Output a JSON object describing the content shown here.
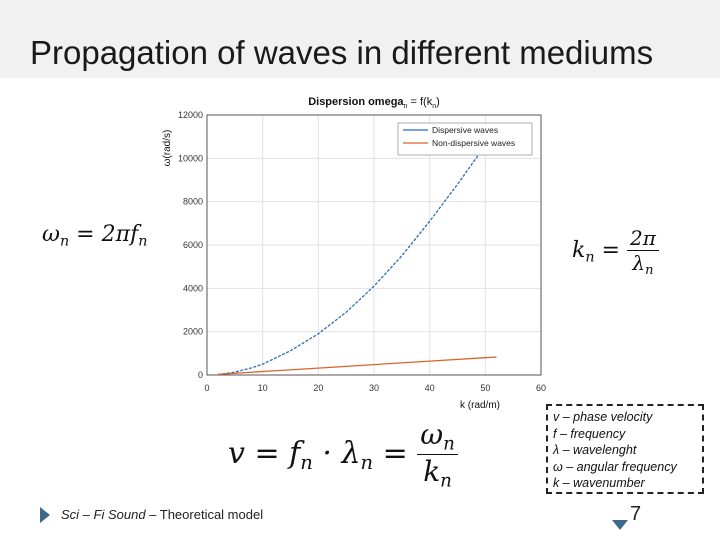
{
  "slide": {
    "title": "Propagation of waves in different mediums",
    "footer_part1": "Sci – Fi Sound",
    "footer_part2": " – Theoretical model",
    "page_number": "7"
  },
  "formulas": {
    "omega_n": "ω",
    "omega_eq": " = 2π",
    "f": "f",
    "n": "n",
    "k": "k",
    "eq": " = ",
    "two_pi": "2π",
    "lambda": "λ",
    "v": "v",
    "dot": " · "
  },
  "legend_box": {
    "lines": [
      "v – phase velocity",
      "f – frequency",
      "λ – wavelenght",
      "ω – angular frequency",
      "k – wavenumber"
    ]
  },
  "colors": {
    "dispersive": "#2f6db5",
    "non_dispersive": "#d9632b",
    "footer_arrow": "#3d6a8a"
  },
  "chart_data": {
    "type": "line",
    "title": "Dispersion omega",
    "title_sub": "n",
    "title_eq": " = f(k",
    "title_sub2": "n",
    "title_end": ")",
    "xlabel": "k (rad/m)",
    "ylabel": "ω(rad/s)",
    "xlim": [
      0,
      60
    ],
    "ylim": [
      0,
      12000
    ],
    "xticks": [
      0,
      10,
      20,
      30,
      40,
      50,
      60
    ],
    "yticks": [
      0,
      2000,
      4000,
      6000,
      8000,
      10000,
      12000
    ],
    "grid": true,
    "legend_position": "top-right",
    "series": [
      {
        "name": "Dispersive waves",
        "x": [
          2,
          5,
          8,
          10,
          15,
          20,
          25,
          30,
          35,
          40,
          45,
          50,
          52
        ],
        "y": [
          20,
          130,
          330,
          500,
          1120,
          1900,
          2900,
          4100,
          5500,
          7100,
          8800,
          10600,
          11400
        ]
      },
      {
        "name": "Non-dispersive waves",
        "x": [
          2,
          10,
          20,
          30,
          40,
          50,
          52
        ],
        "y": [
          30,
          160,
          320,
          480,
          640,
          800,
          830
        ]
      }
    ]
  }
}
